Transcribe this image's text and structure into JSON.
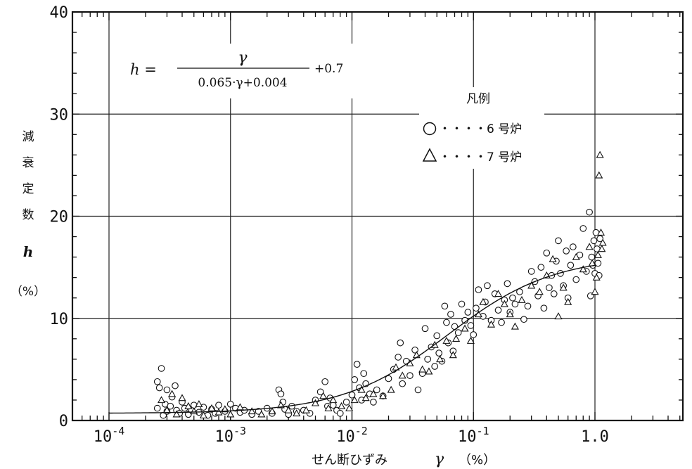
{
  "chart_data": {
    "type": "scatter",
    "x_scale": "log",
    "xlim": [
      0.0001,
      1.0
    ],
    "ylim": [
      0,
      40
    ],
    "x_tick_labels": [
      {
        "base": "10",
        "exp": "-4"
      },
      {
        "base": "10",
        "exp": "-3"
      },
      {
        "base": "10",
        "exp": "-2"
      },
      {
        "base": "10",
        "exp": "-1"
      },
      {
        "base": "1.0",
        "exp": ""
      }
    ],
    "y_ticks": [
      0,
      10,
      20,
      30,
      40
    ],
    "xlabel": {
      "main": "せん断ひずみ",
      "symbol": "γ",
      "unit": "（%）"
    },
    "ylabel": {
      "chars": [
        "減",
        "衰",
        "定",
        "数"
      ],
      "symbol": "h",
      "unit": "（%）"
    },
    "grid": true,
    "formula": {
      "lhs": "h =",
      "numerator": "γ",
      "denominator": "0.065·γ+0.004",
      "suffix": "+0.7"
    },
    "legend": {
      "title": "凡例",
      "placement": "upper-right",
      "entries": [
        {
          "marker": "circle",
          "dots": "・・・・",
          "label": "6 号炉"
        },
        {
          "marker": "triangle",
          "dots": "・・・・",
          "label": "7 号炉"
        }
      ]
    },
    "series": [
      {
        "name": "6 号炉",
        "marker": "circle",
        "points": [
          [
            0.00025,
            3.8
          ],
          [
            0.00025,
            1.2
          ],
          [
            0.00026,
            3.2
          ],
          [
            0.00027,
            5.1
          ],
          [
            0.00028,
            0.5
          ],
          [
            0.00029,
            1.6
          ],
          [
            0.0003,
            3.0
          ],
          [
            0.0003,
            0.9
          ],
          [
            0.00032,
            1.4
          ],
          [
            0.00033,
            2.3
          ],
          [
            0.00035,
            3.4
          ],
          [
            0.00036,
            1.0
          ],
          [
            0.00038,
            0.7
          ],
          [
            0.0004,
            1.8
          ],
          [
            0.00042,
            1.2
          ],
          [
            0.00045,
            0.6
          ],
          [
            0.00048,
            1.0
          ],
          [
            0.0005,
            1.5
          ],
          [
            0.00055,
            0.8
          ],
          [
            0.0006,
            1.3
          ],
          [
            0.00065,
            0.5
          ],
          [
            0.0007,
            1.1
          ],
          [
            0.00075,
            0.7
          ],
          [
            0.0008,
            1.5
          ],
          [
            0.0009,
            0.9
          ],
          [
            0.001,
            1.6
          ],
          [
            0.0011,
            1.2
          ],
          [
            0.0012,
            0.8
          ],
          [
            0.0013,
            1.0
          ],
          [
            0.0015,
            0.6
          ],
          [
            0.0017,
            0.9
          ],
          [
            0.002,
            1.2
          ],
          [
            0.0022,
            0.7
          ],
          [
            0.0025,
            3.0
          ],
          [
            0.0026,
            2.6
          ],
          [
            0.0027,
            1.8
          ],
          [
            0.0028,
            1.1
          ],
          [
            0.003,
            0.6
          ],
          [
            0.0032,
            1.4
          ],
          [
            0.0035,
            0.9
          ],
          [
            0.004,
            1.0
          ],
          [
            0.0045,
            0.7
          ],
          [
            0.005,
            2.0
          ],
          [
            0.0055,
            2.8
          ],
          [
            0.006,
            3.8
          ],
          [
            0.0063,
            1.4
          ],
          [
            0.0066,
            2.2
          ],
          [
            0.007,
            1.5
          ],
          [
            0.0075,
            1.0
          ],
          [
            0.008,
            0.7
          ],
          [
            0.009,
            1.8
          ],
          [
            0.01,
            2.5
          ],
          [
            0.0105,
            4.0
          ],
          [
            0.011,
            5.5
          ],
          [
            0.0115,
            3.2
          ],
          [
            0.012,
            2.0
          ],
          [
            0.0125,
            4.6
          ],
          [
            0.013,
            3.6
          ],
          [
            0.014,
            2.6
          ],
          [
            0.015,
            1.8
          ],
          [
            0.016,
            3.0
          ],
          [
            0.018,
            2.4
          ],
          [
            0.02,
            4.1
          ],
          [
            0.022,
            5.0
          ],
          [
            0.024,
            6.2
          ],
          [
            0.025,
            7.6
          ],
          [
            0.026,
            3.6
          ],
          [
            0.028,
            5.8
          ],
          [
            0.03,
            4.4
          ],
          [
            0.033,
            6.9
          ],
          [
            0.035,
            3.0
          ],
          [
            0.038,
            4.6
          ],
          [
            0.04,
            9.0
          ],
          [
            0.042,
            6.0
          ],
          [
            0.045,
            7.2
          ],
          [
            0.048,
            5.3
          ],
          [
            0.05,
            8.3
          ],
          [
            0.052,
            6.6
          ],
          [
            0.055,
            5.8
          ],
          [
            0.058,
            11.2
          ],
          [
            0.06,
            9.6
          ],
          [
            0.062,
            7.6
          ],
          [
            0.065,
            10.4
          ],
          [
            0.068,
            6.8
          ],
          [
            0.07,
            9.2
          ],
          [
            0.075,
            8.6
          ],
          [
            0.08,
            11.4
          ],
          [
            0.085,
            9.8
          ],
          [
            0.09,
            10.6
          ],
          [
            0.095,
            9.3
          ],
          [
            0.1,
            8.4
          ],
          [
            0.105,
            11.0
          ],
          [
            0.11,
            12.8
          ],
          [
            0.12,
            10.2
          ],
          [
            0.125,
            11.6
          ],
          [
            0.13,
            13.2
          ],
          [
            0.14,
            9.8
          ],
          [
            0.15,
            12.4
          ],
          [
            0.16,
            10.8
          ],
          [
            0.17,
            9.6
          ],
          [
            0.18,
            11.8
          ],
          [
            0.19,
            13.4
          ],
          [
            0.2,
            10.6
          ],
          [
            0.21,
            12.0
          ],
          [
            0.22,
            11.4
          ],
          [
            0.24,
            12.6
          ],
          [
            0.26,
            9.9
          ],
          [
            0.28,
            11.2
          ],
          [
            0.3,
            14.6
          ],
          [
            0.32,
            13.6
          ],
          [
            0.34,
            12.2
          ],
          [
            0.36,
            15.0
          ],
          [
            0.38,
            11.0
          ],
          [
            0.4,
            16.4
          ],
          [
            0.42,
            13.0
          ],
          [
            0.44,
            14.2
          ],
          [
            0.46,
            12.4
          ],
          [
            0.48,
            15.6
          ],
          [
            0.5,
            17.6
          ],
          [
            0.52,
            14.4
          ],
          [
            0.55,
            13.2
          ],
          [
            0.58,
            16.6
          ],
          [
            0.6,
            12.0
          ],
          [
            0.63,
            15.2
          ],
          [
            0.66,
            17.0
          ],
          [
            0.7,
            13.8
          ],
          [
            0.75,
            16.2
          ],
          [
            0.8,
            18.8
          ],
          [
            0.85,
            14.6
          ],
          [
            0.9,
            20.4
          ],
          [
            0.92,
            12.2
          ],
          [
            0.94,
            16.0
          ],
          [
            0.96,
            15.2
          ],
          [
            0.98,
            17.6
          ],
          [
            1.0,
            14.4
          ],
          [
            1.02,
            18.4
          ],
          [
            1.04,
            16.8
          ],
          [
            1.06,
            15.4
          ],
          [
            1.08,
            14.2
          ],
          [
            1.1,
            17.8
          ]
        ]
      },
      {
        "name": "7 号炉",
        "marker": "triangle",
        "points": [
          [
            0.00027,
            2.0
          ],
          [
            0.0003,
            1.0
          ],
          [
            0.00033,
            2.6
          ],
          [
            0.00036,
            0.6
          ],
          [
            0.0004,
            2.2
          ],
          [
            0.00045,
            1.4
          ],
          [
            0.0005,
            0.9
          ],
          [
            0.00055,
            1.6
          ],
          [
            0.0006,
            0.5
          ],
          [
            0.0007,
            1.2
          ],
          [
            0.0008,
            0.8
          ],
          [
            0.0009,
            1.1
          ],
          [
            0.001,
            0.6
          ],
          [
            0.0012,
            1.3
          ],
          [
            0.0015,
            0.9
          ],
          [
            0.0018,
            0.6
          ],
          [
            0.0022,
            0.9
          ],
          [
            0.0026,
            1.5
          ],
          [
            0.003,
            1.0
          ],
          [
            0.0035,
            0.7
          ],
          [
            0.0042,
            1.0
          ],
          [
            0.005,
            1.7
          ],
          [
            0.0058,
            2.4
          ],
          [
            0.0064,
            1.2
          ],
          [
            0.007,
            2.0
          ],
          [
            0.0082,
            1.4
          ],
          [
            0.0095,
            1.2
          ],
          [
            0.0105,
            2.0
          ],
          [
            0.012,
            3.0
          ],
          [
            0.013,
            2.2
          ],
          [
            0.015,
            2.6
          ],
          [
            0.018,
            2.4
          ],
          [
            0.021,
            3.0
          ],
          [
            0.023,
            5.2
          ],
          [
            0.026,
            4.4
          ],
          [
            0.03,
            5.6
          ],
          [
            0.034,
            6.4
          ],
          [
            0.038,
            5.0
          ],
          [
            0.043,
            4.8
          ],
          [
            0.048,
            7.4
          ],
          [
            0.053,
            6.0
          ],
          [
            0.06,
            7.8
          ],
          [
            0.068,
            6.4
          ],
          [
            0.072,
            8.0
          ],
          [
            0.085,
            9.0
          ],
          [
            0.095,
            7.8
          ],
          [
            0.11,
            10.4
          ],
          [
            0.12,
            11.6
          ],
          [
            0.14,
            9.4
          ],
          [
            0.16,
            12.4
          ],
          [
            0.18,
            11.4
          ],
          [
            0.2,
            10.4
          ],
          [
            0.22,
            9.2
          ],
          [
            0.25,
            11.8
          ],
          [
            0.3,
            13.2
          ],
          [
            0.35,
            12.6
          ],
          [
            0.4,
            14.2
          ],
          [
            0.45,
            15.8
          ],
          [
            0.5,
            10.2
          ],
          [
            0.55,
            13.0
          ],
          [
            0.6,
            11.6
          ],
          [
            0.7,
            16.0
          ],
          [
            0.8,
            14.8
          ],
          [
            0.9,
            17.0
          ],
          [
            0.95,
            15.4
          ],
          [
            1.0,
            12.6
          ],
          [
            1.03,
            14.0
          ],
          [
            1.06,
            16.2
          ],
          [
            1.08,
            24.0
          ],
          [
            1.1,
            26.0
          ],
          [
            1.12,
            18.4
          ],
          [
            1.14,
            16.8
          ],
          [
            1.16,
            17.4
          ]
        ]
      }
    ],
    "fit_curve": "h = γ/(0.065·γ+0.004) + 0.7"
  }
}
